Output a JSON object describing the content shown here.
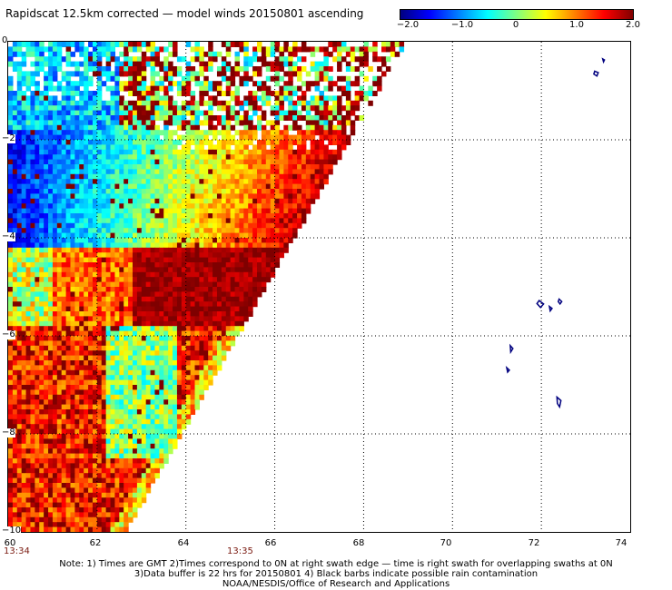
{
  "title": "Rapidscat 12.5km corrected — model winds 20150801 ascending",
  "colorbar": {
    "labels": [
      "−2.0",
      "−1.0",
      "0",
      "1.0",
      "2.0"
    ],
    "range": [
      -2.0,
      2.0
    ]
  },
  "axes": {
    "y_labels": [
      "0",
      "−2",
      "−4",
      "−6",
      "−8",
      "−10"
    ],
    "x_labels": [
      "60",
      "62",
      "64",
      "66",
      "68",
      "70",
      "72",
      "74"
    ],
    "lat_range": [
      -10,
      0
    ],
    "lon_range": [
      60,
      74
    ]
  },
  "times": {
    "left": "13:34",
    "mid": "13:35"
  },
  "notes": {
    "line1": "Note: 1) Times are GMT 2)Times correspond to 0N at right swath edge — time is right swath for overlapping swaths at 0N",
    "line2": "3)Data buffer is 22 hrs for 20150801 4) Black barbs indicate possible rain contamination",
    "line3": "NOAA/NESDIS/Office of Research and Applications"
  },
  "colors": {
    "land_outline": "#00007f",
    "grid": "#000000"
  }
}
